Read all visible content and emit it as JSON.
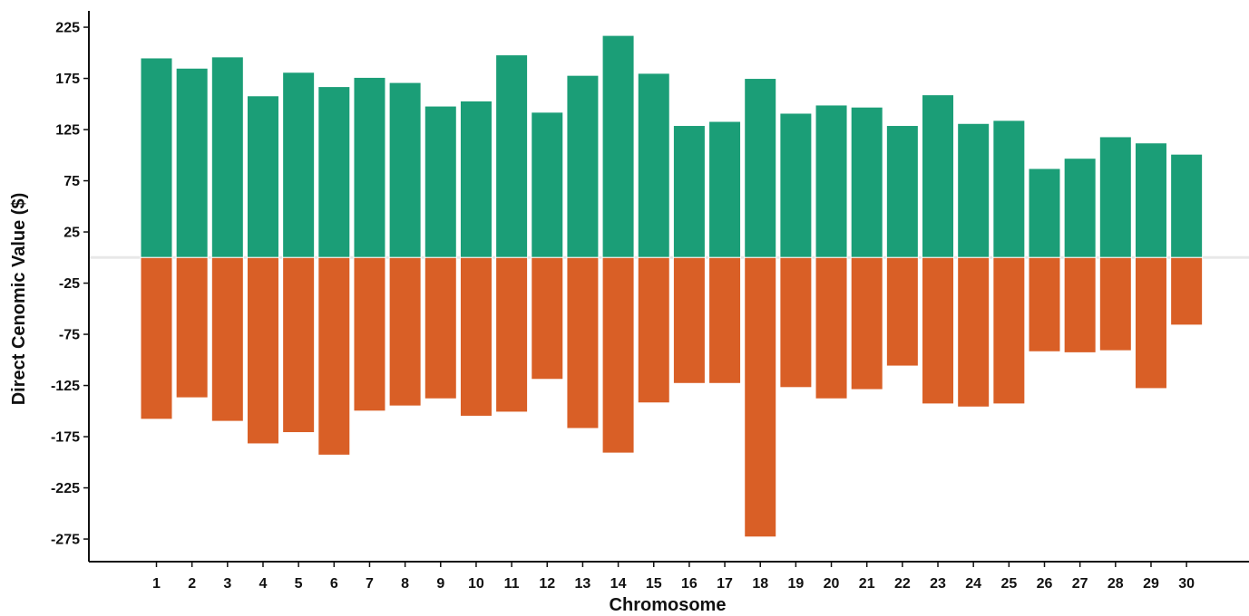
{
  "chart_data": {
    "type": "bar",
    "title": "",
    "xlabel": "Chromosome",
    "ylabel": "Direct Cenomic Value ($)",
    "categories": [
      "1",
      "2",
      "3",
      "4",
      "5",
      "6",
      "7",
      "8",
      "9",
      "10",
      "11",
      "12",
      "13",
      "14",
      "15",
      "16",
      "17",
      "18",
      "19",
      "20",
      "21",
      "22",
      "23",
      "24",
      "25",
      "26",
      "27",
      "28",
      "29",
      "30"
    ],
    "series": [
      {
        "values": [
          195,
          185,
          196,
          158,
          181,
          167,
          176,
          171,
          148,
          153,
          198,
          142,
          178,
          217,
          180,
          129,
          133,
          175,
          141,
          149,
          147,
          129,
          159,
          131,
          134,
          87,
          97,
          118,
          112,
          101
        ],
        "color": "#1b9e77"
      },
      {
        "values": [
          -158,
          -137,
          -160,
          -182,
          -171,
          -193,
          -150,
          -145,
          -138,
          -155,
          -151,
          -119,
          -167,
          -191,
          -142,
          -123,
          -123,
          -273,
          -127,
          -138,
          -129,
          -106,
          -143,
          -146,
          -143,
          -92,
          -93,
          -91,
          -128,
          -66
        ],
        "color": "#d95f26"
      }
    ],
    "yticks": [
      225,
      175,
      125,
      75,
      25,
      -25,
      -75,
      -125,
      -175,
      -225,
      -275
    ],
    "ylim": [
      -295,
      240
    ],
    "grid": false,
    "zero_line_color": "#e8e8e8"
  }
}
